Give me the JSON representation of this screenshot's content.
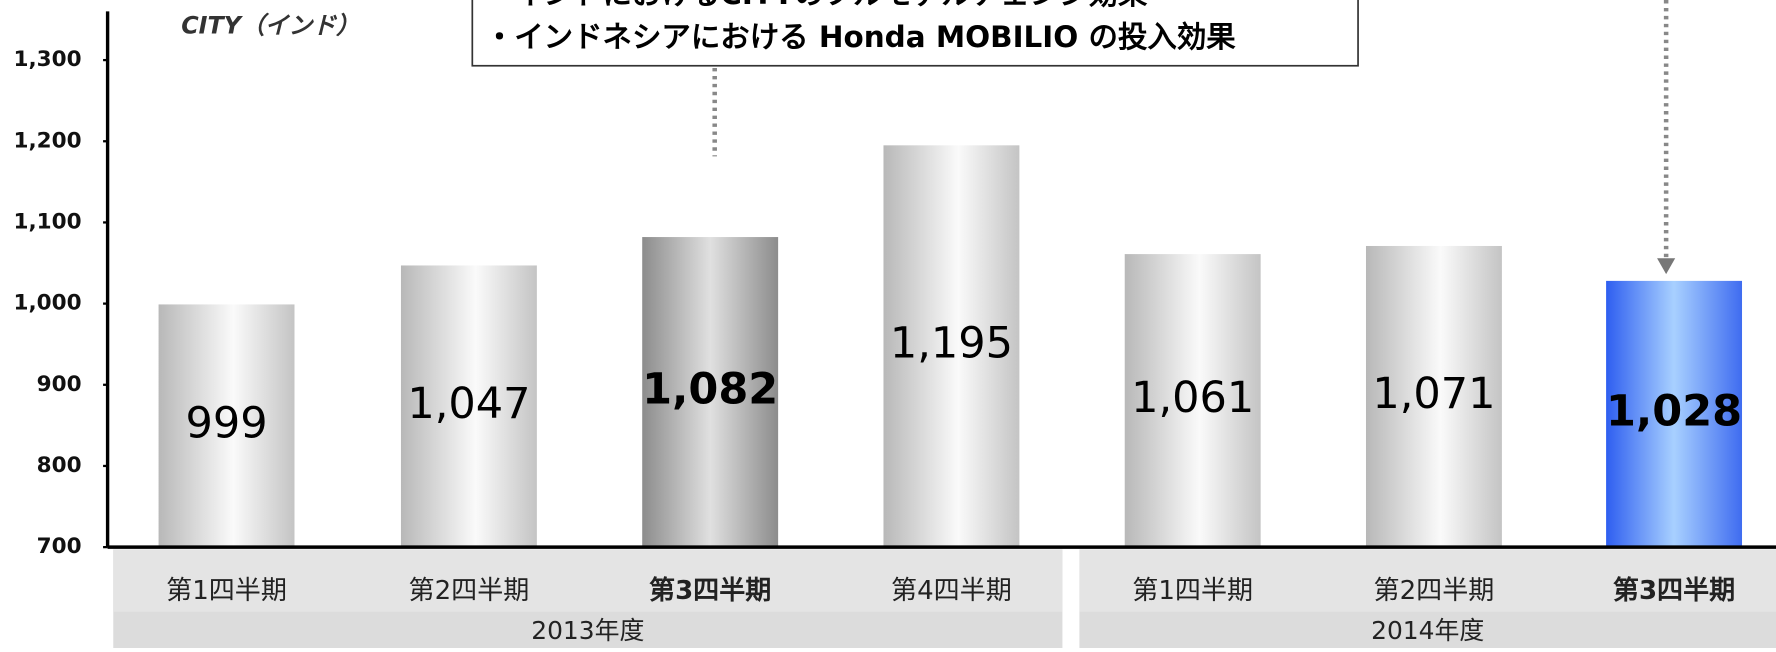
{
  "chart_data": {
    "type": "bar",
    "subtitle": "CITY（インド）",
    "annotations": [
      "・インドにおけるCITYのフルモデルチェンジ効果",
      "・インドネシアにおける Honda MOBILIO の投入効果"
    ],
    "categories": [
      "第1四半期",
      "第2四半期",
      "第3四半期",
      "第4四半期",
      "第1四半期",
      "第2四半期",
      "第3四半期"
    ],
    "groups": [
      {
        "label": "2013年度",
        "count": 4
      },
      {
        "label": "2014年度",
        "count": 3
      }
    ],
    "values": [
      999,
      1047,
      1082,
      1195,
      1061,
      1071,
      1028
    ],
    "value_labels": [
      "999",
      "1,047",
      "1,082",
      "1,195",
      "1,061",
      "1,071",
      "1,028"
    ],
    "colors": [
      "gray",
      "gray",
      "darkgray",
      "gray",
      "gray",
      "gray",
      "blue"
    ],
    "highlight": [
      2,
      6
    ],
    "ylim": [
      700,
      1360
    ],
    "yticks": [
      {
        "value": 700,
        "label": "700"
      },
      {
        "value": 800,
        "label": "800"
      },
      {
        "value": 900,
        "label": "900"
      },
      {
        "value": 1000,
        "label": "1,000"
      },
      {
        "value": 1100,
        "label": "1,100"
      },
      {
        "value": 1200,
        "label": "1,200"
      },
      {
        "value": 1300,
        "label": "1,300"
      }
    ]
  }
}
